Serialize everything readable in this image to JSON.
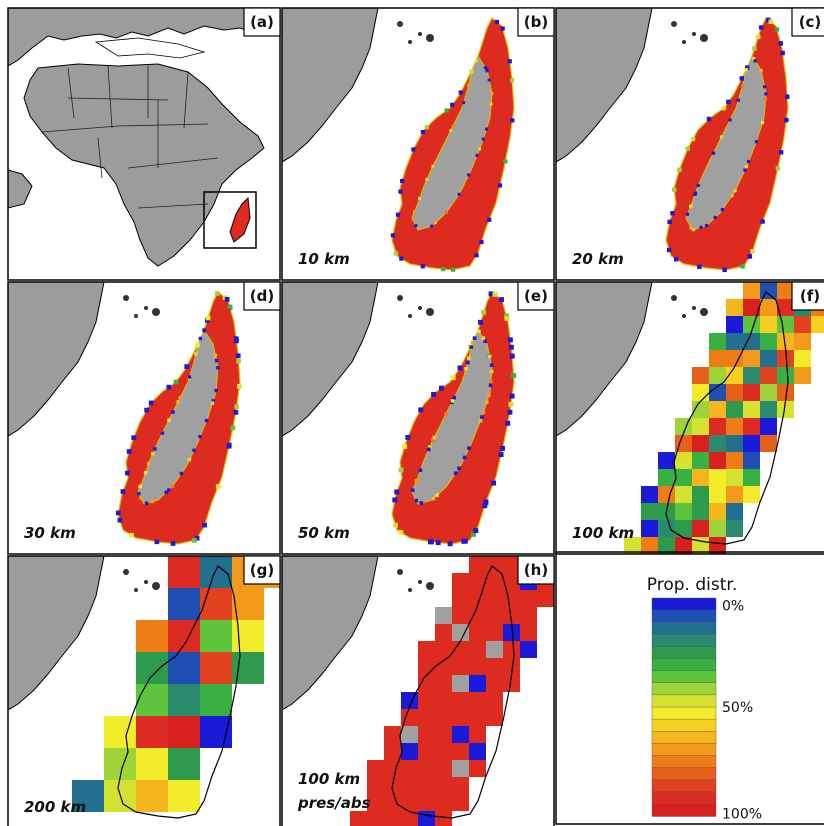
{
  "panels": [
    {
      "id": "a",
      "label": "(a)",
      "kind": "overview",
      "resolution": ""
    },
    {
      "id": "b",
      "label": "(b)",
      "kind": "fine",
      "resolution": "10 km",
      "cell_fraction": 0.1
    },
    {
      "id": "c",
      "label": "(c)",
      "kind": "fine",
      "resolution": "20 km",
      "cell_fraction": 0.12
    },
    {
      "id": "d",
      "label": "(d)",
      "kind": "fine",
      "resolution": "30 km",
      "cell_fraction": 0.14
    },
    {
      "id": "e",
      "label": "(e)",
      "kind": "fine",
      "resolution": "50 km",
      "cell_fraction": 0.16
    },
    {
      "id": "f",
      "label": "(f)",
      "kind": "grid100",
      "resolution": "100 km"
    },
    {
      "id": "g",
      "label": "(g)",
      "kind": "grid200",
      "resolution": "200 km"
    },
    {
      "id": "h",
      "label": "(h)",
      "kind": "presabs",
      "resolution": "100 km",
      "resolution_line2": "pres/abs"
    }
  ],
  "legend": {
    "title": "Prop. distr.",
    "ticks": [
      {
        "label": "0%",
        "value": 0
      },
      {
        "label": "50%",
        "value": 50
      },
      {
        "label": "100%",
        "value": 100
      }
    ],
    "colors": [
      "#1a1ad8",
      "#1f4fb3",
      "#236f8f",
      "#2a8a6e",
      "#2e9a4e",
      "#38b043",
      "#5ec43c",
      "#9ed339",
      "#d6e231",
      "#f2ec2a",
      "#f8d020",
      "#f5b51c",
      "#f39a1a",
      "#ee7d18",
      "#e65f1b",
      "#e0411f",
      "#dc2b22",
      "#d8201f"
    ]
  },
  "colors": {
    "ocean": "#ffffff",
    "land": "#9c9c9c",
    "madagascar_fill": "#dd2b1f",
    "core": "#a0a0a0",
    "outline": "#000000"
  }
}
